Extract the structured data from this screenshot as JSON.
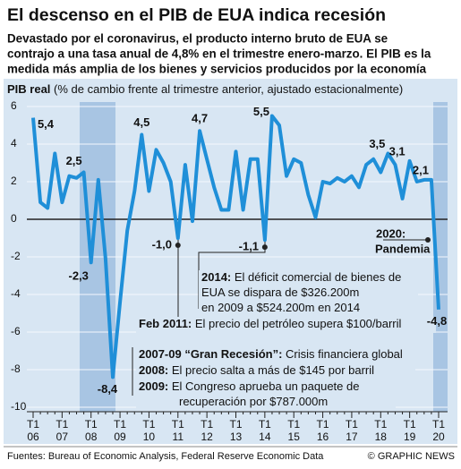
{
  "chart_data": {
    "type": "line",
    "title": "El descenso en el PIB de EUA indica recesión",
    "subtitle": [
      "Devastado por el coronavirus, el producto interno bruto de EUA se",
      "contrajo a una tasa anual de 4,8% en el trimestre enero-marzo. El PIB es la",
      "medida más amplia de los bienes y servicios producidos por la economía"
    ],
    "ylabel": "PIB real",
    "ylabel_note": "(% de cambio frente al trimestre anterior, ajustado estacionalmente)",
    "categories": [
      "T1\n06",
      null,
      null,
      null,
      "T1\n07",
      null,
      null,
      null,
      "T1\n08",
      null,
      null,
      null,
      "T1\n09",
      null,
      null,
      null,
      "T1\n10",
      null,
      null,
      null,
      "T1\n11",
      null,
      null,
      null,
      "T1\n12",
      null,
      null,
      null,
      "T1\n13",
      null,
      null,
      null,
      "T1\n14",
      null,
      null,
      null,
      "T1\n15",
      null,
      null,
      null,
      "T1\n16",
      null,
      null,
      null,
      "T1\n17",
      null,
      null,
      null,
      "T1\n18",
      null,
      null,
      null,
      "T1\n19",
      null,
      null,
      null,
      "T1\n20"
    ],
    "series": [
      {
        "name": "PIB real",
        "color": "#1f8fd8",
        "values": [
          5.4,
          0.9,
          0.6,
          3.5,
          0.9,
          2.3,
          2.2,
          2.5,
          -2.3,
          2.1,
          -2.1,
          -8.4,
          -4.4,
          -0.6,
          1.5,
          4.5,
          1.5,
          3.7,
          3.0,
          2.0,
          -1.0,
          2.9,
          -0.1,
          4.7,
          3.2,
          1.7,
          0.5,
          0.5,
          3.6,
          0.5,
          3.2,
          3.2,
          -1.1,
          5.5,
          5.0,
          2.3,
          3.2,
          3.0,
          1.3,
          0.1,
          2.0,
          1.9,
          2.2,
          2.0,
          2.3,
          1.7,
          2.9,
          3.2,
          2.5,
          3.5,
          2.9,
          1.1,
          3.1,
          2.0,
          2.1,
          2.1,
          -4.8
        ],
        "value_labels": [
          "5,4",
          null,
          null,
          null,
          null,
          null,
          null,
          "2,5",
          "-2,3",
          null,
          null,
          "-8,4",
          null,
          null,
          null,
          "4,5",
          null,
          null,
          null,
          null,
          "-1,0",
          null,
          null,
          "4,7",
          null,
          null,
          null,
          null,
          null,
          null,
          null,
          null,
          "-1,1",
          "5,5",
          null,
          null,
          null,
          null,
          null,
          null,
          null,
          null,
          null,
          null,
          null,
          null,
          null,
          null,
          null,
          "3,5",
          null,
          null,
          "3,1",
          null,
          null,
          "2,1",
          "-4,8"
        ]
      }
    ],
    "ylim": [
      -10,
      6
    ],
    "yticks": [
      -10,
      -8,
      -6,
      -4,
      -2,
      0,
      2,
      4,
      6
    ],
    "grid": true,
    "annotations": {
      "trade": {
        "label": "2014:",
        "lines": [
          " El déficit comercial de bienes de",
          "EUA se dispara de $326.200m",
          "en 2009 a $524.200m en 2014"
        ]
      },
      "oil": {
        "label": "Feb 2011:",
        "lines": [
          " El precio del petróleo supera $100/barril"
        ]
      },
      "recession": {
        "label": "2007-09 “Gran Recesión”:",
        "lines": [
          " Crisis financiera global"
        ]
      },
      "price": {
        "label": "2008:",
        "lines": [
          " El precio salta a más de $145 por barril"
        ]
      },
      "stimulus": {
        "label": "2009:",
        "lines": [
          " El Congreso aprueba un paquete de",
          "recuperación por $787.000m"
        ]
      },
      "pandemic": {
        "label": "2020:",
        "lines": [
          "Pandemia"
        ]
      }
    },
    "source": "Fuentes: Bureau of Economic Analysis, Federal Reserve Economic Data",
    "credit": "© GRAPHIC NEWS"
  }
}
